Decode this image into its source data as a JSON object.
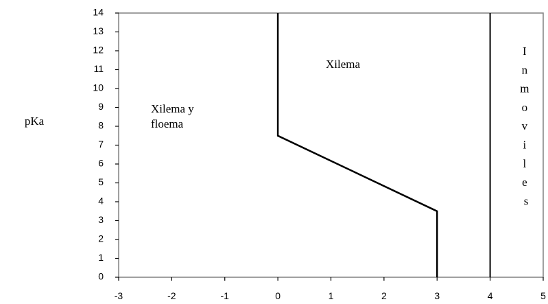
{
  "chart_data": {
    "type": "line",
    "title": "",
    "xlabel": "",
    "ylabel": "pKa",
    "xlim": [
      -3,
      5
    ],
    "ylim": [
      0,
      14
    ],
    "x_ticks": [
      "-3",
      "-2",
      "-1",
      "0",
      "1",
      "2",
      "3",
      "4",
      "5"
    ],
    "y_ticks": [
      "0",
      "1",
      "2",
      "3",
      "4",
      "5",
      "6",
      "7",
      "8",
      "9",
      "10",
      "11",
      "12",
      "13",
      "14"
    ],
    "grid": false,
    "legend": "none",
    "series": [
      {
        "x": [
          0,
          0,
          3,
          3
        ],
        "y": [
          14,
          7.5,
          3.5,
          0
        ],
        "color": "#000000"
      },
      {
        "x": [
          4,
          4
        ],
        "y": [
          0,
          14
        ],
        "color": "#000000"
      }
    ],
    "annotations": [
      {
        "text_lines": [
          "Xilema y",
          "floema"
        ]
      },
      {
        "text_lines": [
          "Xilema"
        ]
      },
      {
        "text_lines": [
          "I",
          "n",
          "m",
          "o",
          "v",
          "i",
          "l",
          "e",
          "s"
        ]
      }
    ]
  }
}
